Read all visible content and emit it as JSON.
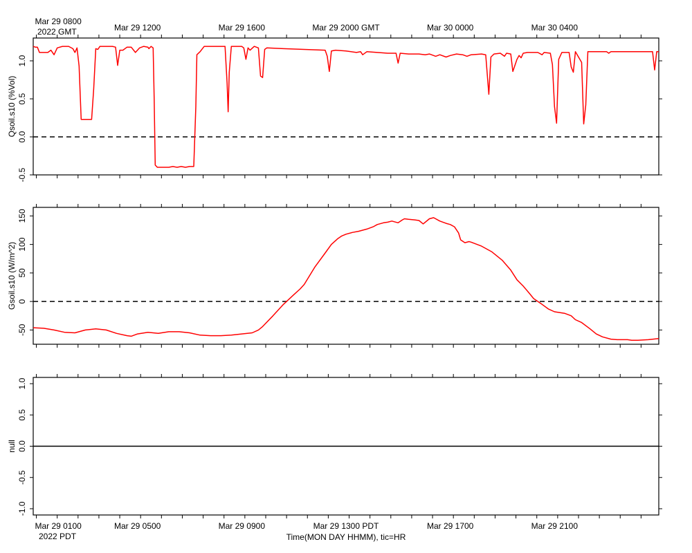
{
  "chart_data": [
    {
      "type": "line",
      "ylabel": "Qsoil.s10 (%Vol)",
      "ylim": [
        -0.5,
        1.3
      ],
      "yticks": [
        1.0,
        0.5,
        0.0,
        -0.5
      ],
      "ytick_labels": [
        "1.0",
        "0.5",
        "0.0",
        "-0.5"
      ],
      "zero_line": "dashed",
      "series": [
        {
          "color": "#ff0000",
          "points": [
            [
              0.0,
              1.19
            ],
            [
              0.1,
              1.18
            ],
            [
              0.2,
              1.18
            ],
            [
              0.3,
              1.11
            ],
            [
              0.5,
              1.11
            ],
            [
              0.7,
              1.11
            ],
            [
              0.85,
              1.14
            ],
            [
              1.0,
              1.08
            ],
            [
              1.15,
              1.17
            ],
            [
              1.4,
              1.19
            ],
            [
              1.7,
              1.19
            ],
            [
              1.9,
              1.16
            ],
            [
              2.0,
              1.11
            ],
            [
              2.1,
              1.17
            ],
            [
              2.2,
              0.93
            ],
            [
              2.3,
              0.23
            ],
            [
              2.8,
              0.23
            ],
            [
              2.9,
              0.63
            ],
            [
              3.0,
              1.16
            ],
            [
              3.1,
              1.15
            ],
            [
              3.2,
              1.19
            ],
            [
              3.8,
              1.19
            ],
            [
              3.95,
              1.18
            ],
            [
              4.05,
              0.94
            ],
            [
              4.15,
              1.14
            ],
            [
              4.3,
              1.14
            ],
            [
              4.5,
              1.18
            ],
            [
              4.7,
              1.18
            ],
            [
              4.9,
              1.11
            ],
            [
              5.1,
              1.17
            ],
            [
              5.3,
              1.19
            ],
            [
              5.5,
              1.18
            ],
            [
              5.55,
              1.16
            ],
            [
              5.65,
              1.19
            ],
            [
              5.75,
              1.17
            ],
            [
              5.8,
              0.5
            ],
            [
              5.85,
              -0.37
            ],
            [
              5.95,
              -0.4
            ],
            [
              6.5,
              -0.4
            ],
            [
              6.7,
              -0.39
            ],
            [
              6.9,
              -0.4
            ],
            [
              7.1,
              -0.39
            ],
            [
              7.3,
              -0.4
            ],
            [
              7.5,
              -0.39
            ],
            [
              7.7,
              -0.39
            ],
            [
              7.8,
              0.4
            ],
            [
              7.85,
              1.08
            ],
            [
              8.0,
              1.12
            ],
            [
              8.2,
              1.19
            ],
            [
              9.2,
              1.19
            ],
            [
              9.3,
              0.7
            ],
            [
              9.35,
              0.33
            ],
            [
              9.4,
              0.85
            ],
            [
              9.5,
              1.19
            ],
            [
              10.0,
              1.19
            ],
            [
              10.1,
              1.17
            ],
            [
              10.2,
              1.02
            ],
            [
              10.3,
              1.17
            ],
            [
              10.4,
              1.14
            ],
            [
              10.6,
              1.19
            ],
            [
              10.8,
              1.17
            ],
            [
              10.9,
              0.8
            ],
            [
              11.0,
              0.78
            ],
            [
              11.1,
              1.15
            ],
            [
              11.2,
              1.17
            ],
            [
              12.0,
              1.16
            ],
            [
              13.0,
              1.15
            ],
            [
              14.0,
              1.14
            ],
            [
              14.1,
              1.06
            ],
            [
              14.2,
              0.86
            ],
            [
              14.3,
              1.13
            ],
            [
              14.5,
              1.14
            ],
            [
              15.0,
              1.13
            ],
            [
              15.5,
              1.11
            ],
            [
              15.7,
              1.12
            ],
            [
              15.8,
              1.08
            ],
            [
              16.0,
              1.12
            ],
            [
              16.5,
              1.11
            ],
            [
              17.0,
              1.1
            ],
            [
              17.4,
              1.1
            ],
            [
              17.5,
              0.97
            ],
            [
              17.6,
              1.1
            ],
            [
              18.0,
              1.09
            ],
            [
              18.5,
              1.09
            ],
            [
              18.8,
              1.08
            ],
            [
              19.0,
              1.09
            ],
            [
              19.3,
              1.06
            ],
            [
              19.5,
              1.08
            ],
            [
              19.8,
              1.05
            ],
            [
              20.0,
              1.07
            ],
            [
              20.3,
              1.09
            ],
            [
              20.6,
              1.08
            ],
            [
              20.8,
              1.06
            ],
            [
              21.0,
              1.08
            ],
            [
              21.5,
              1.09
            ],
            [
              21.7,
              1.08
            ],
            [
              21.85,
              0.56
            ],
            [
              21.95,
              1.05
            ],
            [
              22.1,
              1.09
            ],
            [
              22.4,
              1.1
            ],
            [
              22.6,
              1.06
            ],
            [
              22.7,
              1.1
            ],
            [
              22.9,
              1.09
            ],
            [
              23.0,
              0.86
            ],
            [
              23.2,
              1.02
            ],
            [
              23.3,
              1.07
            ],
            [
              23.4,
              1.04
            ],
            [
              23.5,
              1.1
            ],
            [
              23.7,
              1.11
            ],
            [
              24.2,
              1.11
            ],
            [
              24.4,
              1.08
            ],
            [
              24.5,
              1.11
            ],
            [
              24.8,
              1.1
            ],
            [
              24.9,
              0.95
            ],
            [
              25.0,
              0.4
            ],
            [
              25.1,
              0.18
            ],
            [
              25.2,
              1.02
            ],
            [
              25.35,
              1.11
            ],
            [
              25.7,
              1.11
            ],
            [
              25.8,
              0.92
            ],
            [
              25.9,
              0.85
            ],
            [
              26.0,
              1.12
            ],
            [
              26.3,
              0.98
            ],
            [
              26.4,
              0.17
            ],
            [
              26.5,
              0.42
            ],
            [
              26.6,
              1.12
            ],
            [
              27.5,
              1.12
            ],
            [
              27.6,
              1.1
            ],
            [
              27.7,
              1.12
            ],
            [
              29.0,
              1.12
            ],
            [
              29.7,
              1.12
            ],
            [
              29.8,
              0.88
            ],
            [
              29.9,
              1.12
            ],
            [
              30.0,
              1.12
            ]
          ]
        }
      ]
    },
    {
      "type": "line",
      "ylabel": "Gsoil.s10 (W/m^2)",
      "ylim": [
        -75,
        165
      ],
      "yticks": [
        150,
        100,
        50,
        0,
        -50
      ],
      "ytick_labels": [
        "150",
        "100",
        "50",
        "0",
        "-50"
      ],
      "zero_line": "dashed",
      "series": [
        {
          "color": "#ff0000",
          "points": [
            [
              0.0,
              -46
            ],
            [
              0.5,
              -47
            ],
            [
              1.0,
              -50
            ],
            [
              1.5,
              -54
            ],
            [
              2.0,
              -55
            ],
            [
              2.5,
              -50
            ],
            [
              3.0,
              -48
            ],
            [
              3.5,
              -50
            ],
            [
              4.0,
              -56
            ],
            [
              4.5,
              -60
            ],
            [
              4.7,
              -61
            ],
            [
              5.0,
              -57
            ],
            [
              5.5,
              -54
            ],
            [
              6.0,
              -56
            ],
            [
              6.5,
              -53
            ],
            [
              7.0,
              -53
            ],
            [
              7.5,
              -55
            ],
            [
              8.0,
              -59
            ],
            [
              8.5,
              -60
            ],
            [
              9.0,
              -60
            ],
            [
              9.5,
              -59
            ],
            [
              10.0,
              -57
            ],
            [
              10.5,
              -55
            ],
            [
              10.8,
              -50
            ],
            [
              11.0,
              -44
            ],
            [
              11.5,
              -25
            ],
            [
              12.0,
              -5
            ],
            [
              12.5,
              12
            ],
            [
              12.8,
              22
            ],
            [
              13.0,
              30
            ],
            [
              13.5,
              60
            ],
            [
              14.0,
              85
            ],
            [
              14.3,
              100
            ],
            [
              14.6,
              110
            ],
            [
              14.8,
              115
            ],
            [
              15.0,
              118
            ],
            [
              15.3,
              121
            ],
            [
              15.6,
              123
            ],
            [
              16.0,
              127
            ],
            [
              16.3,
              131
            ],
            [
              16.5,
              135
            ],
            [
              16.8,
              138
            ],
            [
              17.0,
              139
            ],
            [
              17.2,
              141
            ],
            [
              17.5,
              138
            ],
            [
              17.7,
              143
            ],
            [
              17.8,
              145
            ],
            [
              18.0,
              144
            ],
            [
              18.3,
              143
            ],
            [
              18.5,
              142
            ],
            [
              18.7,
              136
            ],
            [
              18.9,
              142
            ],
            [
              19.0,
              145
            ],
            [
              19.2,
              147
            ],
            [
              19.5,
              141
            ],
            [
              19.8,
              137
            ],
            [
              20.0,
              135
            ],
            [
              20.2,
              131
            ],
            [
              20.4,
              120
            ],
            [
              20.5,
              108
            ],
            [
              20.7,
              103
            ],
            [
              20.9,
              105
            ],
            [
              21.0,
              104
            ],
            [
              21.5,
              97
            ],
            [
              22.0,
              87
            ],
            [
              22.5,
              72
            ],
            [
              22.9,
              55
            ],
            [
              23.2,
              38
            ],
            [
              23.5,
              27
            ],
            [
              23.8,
              14
            ],
            [
              24.0,
              5
            ],
            [
              24.4,
              -5
            ],
            [
              24.7,
              -13
            ],
            [
              25.0,
              -18
            ],
            [
              25.5,
              -21
            ],
            [
              25.8,
              -25
            ],
            [
              26.0,
              -32
            ],
            [
              26.3,
              -37
            ],
            [
              26.7,
              -48
            ],
            [
              27.0,
              -57
            ],
            [
              27.3,
              -62
            ],
            [
              27.7,
              -66
            ],
            [
              28.0,
              -67
            ],
            [
              28.5,
              -67
            ],
            [
              28.7,
              -68
            ],
            [
              29.0,
              -68
            ],
            [
              29.5,
              -67
            ],
            [
              30.0,
              -65
            ]
          ]
        }
      ]
    },
    {
      "type": "line",
      "ylabel": "null",
      "ylim": [
        -1.1,
        1.1
      ],
      "yticks": [
        1.0,
        0.5,
        0.0,
        -0.5,
        -1.0
      ],
      "ytick_labels": [
        "1.0",
        "0.5",
        "0.0",
        "-0.5",
        "-1.0"
      ],
      "zero_line": "solid",
      "series": []
    }
  ],
  "x_axis": {
    "range_hours": [
      0,
      30
    ],
    "top_labels": [
      {
        "hour": 1.2,
        "line1": "Mar 29 0800",
        "line2": "2022 GMT"
      },
      {
        "hour": 5.0,
        "line1": "Mar 29 1200"
      },
      {
        "hour": 10.0,
        "line1": "Mar 29 1600"
      },
      {
        "hour": 15.0,
        "line1": "Mar 29 2000 GMT"
      },
      {
        "hour": 20.0,
        "line1": "Mar 30 0000"
      },
      {
        "hour": 25.0,
        "line1": "Mar 30 0400"
      }
    ],
    "bottom_labels": [
      {
        "hour": 1.2,
        "line1": "Mar 29 0100",
        "line2": "2022 PDT"
      },
      {
        "hour": 5.0,
        "line1": "Mar 29 0500"
      },
      {
        "hour": 10.0,
        "line1": "Mar 29 0900"
      },
      {
        "hour": 15.0,
        "line1": "Mar 29 1300 PDT"
      },
      {
        "hour": 20.0,
        "line1": "Mar 29 1700"
      },
      {
        "hour": 25.0,
        "line1": "Mar 29 2100"
      }
    ],
    "xlabel": "Time(MON DAY HHMM), tic=HR"
  }
}
